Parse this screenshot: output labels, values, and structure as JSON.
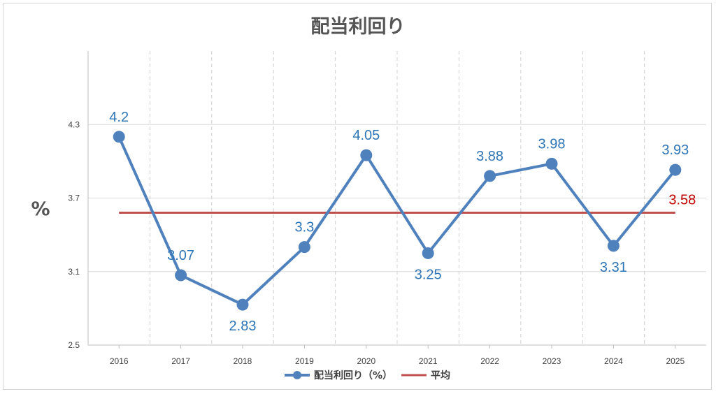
{
  "chart_data": {
    "type": "line",
    "title": "配当利回り",
    "xlabel": "",
    "ylabel": "%",
    "categories": [
      "2016",
      "2017",
      "2018",
      "2019",
      "2020",
      "2021",
      "2022",
      "2023",
      "2024",
      "2025"
    ],
    "ylim": [
      2.5,
      4.9
    ],
    "yticks": [
      "2.5",
      "3.1",
      "3.7",
      "4.3"
    ],
    "grid": true,
    "legend_position": "bottom",
    "series": [
      {
        "name": "配当利回り（%）",
        "values": [
          4.2,
          3.07,
          2.83,
          3.3,
          4.05,
          3.25,
          3.88,
          3.98,
          3.31,
          3.93
        ],
        "labels": [
          "4.2",
          "3.07",
          "2.83",
          "3.3",
          "4.05",
          "3.25",
          "3.88",
          "3.98",
          "3.31",
          "3.93"
        ],
        "color": "#4f81bd",
        "label_color": "#2e75b6"
      },
      {
        "name": "平均",
        "values": [
          3.58,
          3.58,
          3.58,
          3.58,
          3.58,
          3.58,
          3.58,
          3.58,
          3.58,
          3.58
        ],
        "label": "3.58",
        "color": "#c0504d",
        "label_color": "#c00000"
      }
    ]
  }
}
